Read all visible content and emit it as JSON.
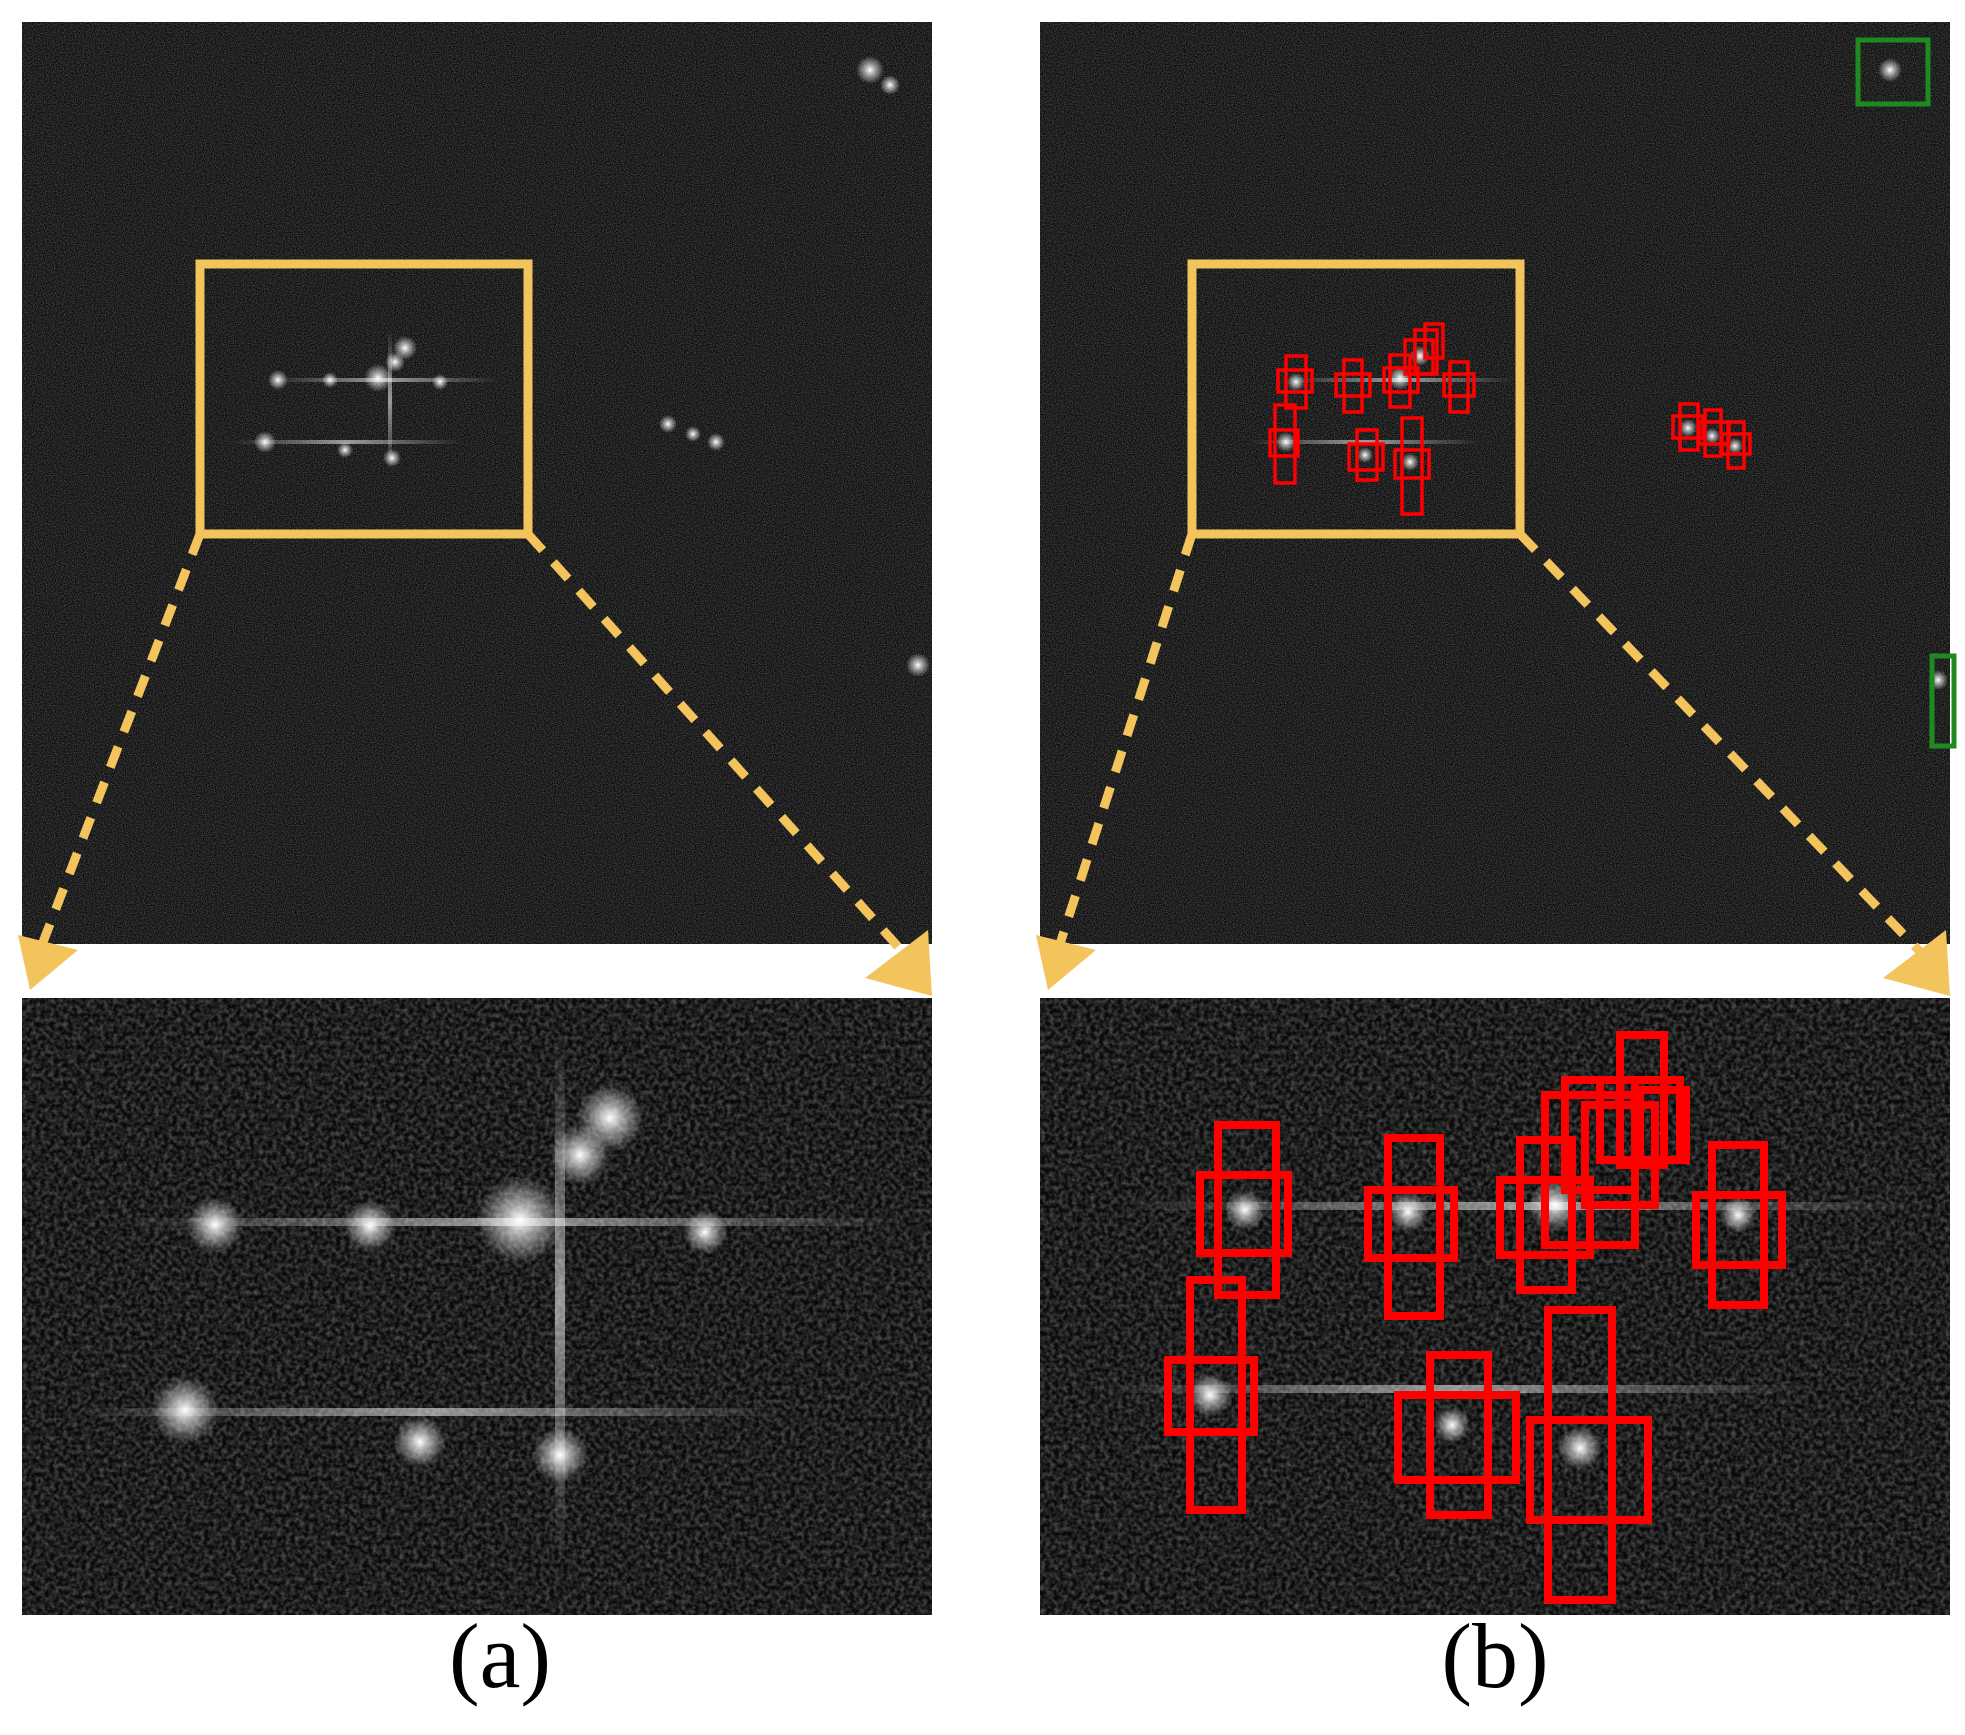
{
  "panels": [
    {
      "id": "a",
      "caption": "(a)",
      "has_detections": false
    },
    {
      "id": "b",
      "caption": "(b)",
      "has_detections": true
    }
  ],
  "colors": {
    "background": "#000000",
    "highlight_box": "#f3c35c",
    "detection_box": "#ff0000",
    "missed_box": "#1f8a1f",
    "caption": "#000000"
  }
}
